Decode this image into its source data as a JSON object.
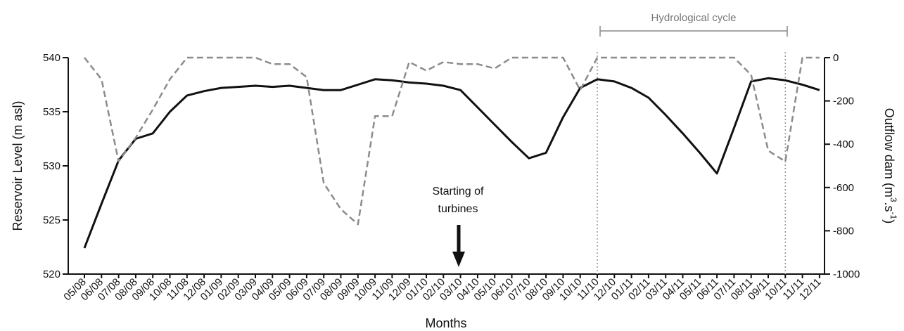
{
  "chart_data": {
    "type": "line",
    "xlabel": "Months",
    "ylabel_left": "Reservoir Level (m asl)",
    "ylabel_right_parts": [
      "Outflow dam (m",
      "3",
      ".s",
      "-1",
      ")"
    ],
    "categories": [
      "05/08",
      "06/08",
      "07/08",
      "08/08",
      "09/08",
      "10/08",
      "11/08",
      "12/08",
      "01/09",
      "02/09",
      "03/09",
      "04/09",
      "05/09",
      "06/09",
      "07/09",
      "08/09",
      "09/09",
      "10/09",
      "11/09",
      "12/09",
      "01/10",
      "02/10",
      "03/10",
      "04/10",
      "05/10",
      "06/10",
      "07/10",
      "08/10",
      "09/10",
      "10/10",
      "11/10",
      "12/10",
      "01/11",
      "02/11",
      "03/11",
      "04/11",
      "05/11",
      "06/11",
      "07/11",
      "08/11",
      "09/11",
      "10/11",
      "11/11",
      "12/11"
    ],
    "ylim_left": [
      520,
      540
    ],
    "yticks_left": [
      520,
      525,
      530,
      535,
      540
    ],
    "ylim_right": [
      -1000,
      0
    ],
    "yticks_right": [
      -1000,
      -800,
      -600,
      -400,
      -200,
      0
    ],
    "series": [
      {
        "axis": "left",
        "style": "solid",
        "color": "#111111",
        "values": [
          522.4,
          526.5,
          530.5,
          532.5,
          533.0,
          535.0,
          536.5,
          536.9,
          537.2,
          537.3,
          537.4,
          537.3,
          537.4,
          537.2,
          537.0,
          537.0,
          537.5,
          538.0,
          537.9,
          537.7,
          537.6,
          537.4,
          537.0,
          535.4,
          533.8,
          532.2,
          530.7,
          531.2,
          534.5,
          537.2,
          538.0,
          537.8,
          537.2,
          536.3,
          534.7,
          533.0,
          531.2,
          529.3,
          533.5,
          537.8,
          538.1,
          537.9,
          537.5,
          537.0
        ]
      },
      {
        "axis": "right",
        "style": "dashed",
        "color": "#8c8c8c",
        "values": [
          0,
          -100,
          -480,
          -370,
          -240,
          -100,
          0,
          0,
          0,
          0,
          0,
          -30,
          -30,
          -90,
          -580,
          -700,
          -770,
          -270,
          -270,
          -20,
          -60,
          -20,
          -30,
          -30,
          -50,
          0,
          0,
          0,
          0,
          -150,
          0,
          0,
          0,
          0,
          0,
          0,
          0,
          0,
          0,
          -80,
          -430,
          -480,
          0,
          0
        ]
      }
    ],
    "annotations": [
      {
        "lines": [
          "Starting of",
          "turbines"
        ],
        "category": "03/10",
        "arrow": "down"
      },
      {
        "label": "Hydrological cycle",
        "from": "11/10",
        "to": "10/11",
        "bracket": true
      }
    ],
    "vertical_markers": [
      "11/10",
      "10/11"
    ],
    "grid": false,
    "legend": "none"
  }
}
